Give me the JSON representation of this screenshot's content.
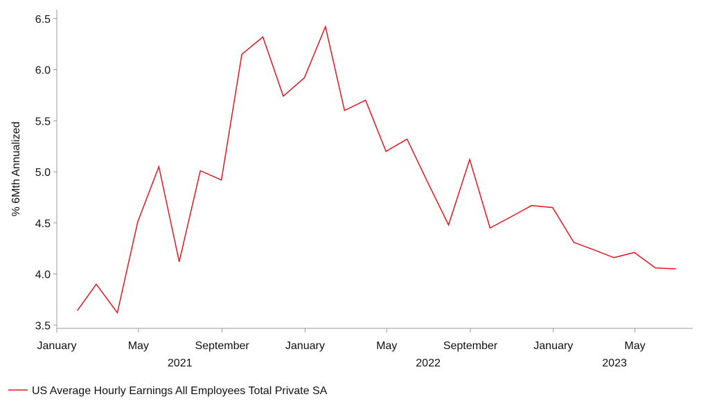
{
  "chart_data": {
    "type": "line",
    "ylabel": "% 6Mth Annualized",
    "ylim": [
      3.4,
      6.6
    ],
    "yticks": [
      "6.5",
      "6.0",
      "5.5",
      "5.0",
      "4.5",
      "4.0",
      "3.5"
    ],
    "ytick_values": [
      6.5,
      6.0,
      5.5,
      5.0,
      4.5,
      4.0,
      3.5
    ],
    "xlim": [
      "2021-01-01",
      "2023-07-25"
    ],
    "xticks": [
      {
        "date": "2021-01-01",
        "label": "January"
      },
      {
        "date": "2021-05-01",
        "label": "May"
      },
      {
        "date": "2021-09-01",
        "label": "September"
      },
      {
        "date": "2022-01-01",
        "label": "January"
      },
      {
        "date": "2022-05-01",
        "label": "May"
      },
      {
        "date": "2022-09-01",
        "label": "September"
      },
      {
        "date": "2023-01-01",
        "label": "January"
      },
      {
        "date": "2023-05-01",
        "label": "May"
      }
    ],
    "year_labels": [
      {
        "date": "2021-07-01",
        "label": "2021"
      },
      {
        "date": "2022-07-01",
        "label": "2022"
      },
      {
        "date": "2023-04-01",
        "label": "2023"
      }
    ],
    "grid": false,
    "legend_position": "bottom-left",
    "series": [
      {
        "name": "US Average Hourly Earnings All Employees Total Private SA",
        "color": "#e0161f",
        "x": [
          "2021-01-31",
          "2021-02-28",
          "2021-03-31",
          "2021-04-30",
          "2021-05-31",
          "2021-06-30",
          "2021-07-31",
          "2021-08-31",
          "2021-09-30",
          "2021-10-31",
          "2021-11-30",
          "2021-12-31",
          "2022-01-31",
          "2022-02-28",
          "2022-03-31",
          "2022-04-30",
          "2022-05-31",
          "2022-06-30",
          "2022-07-31",
          "2022-08-31",
          "2022-09-30",
          "2022-10-31",
          "2022-11-30",
          "2022-12-31",
          "2023-01-31",
          "2023-02-28",
          "2023-03-31",
          "2023-04-30",
          "2023-05-31",
          "2023-06-30"
        ],
        "values": [
          3.64,
          3.9,
          3.62,
          4.51,
          5.05,
          4.12,
          5.01,
          4.92,
          6.15,
          6.32,
          5.74,
          5.92,
          6.42,
          5.6,
          5.7,
          5.2,
          5.32,
          4.9,
          4.48,
          5.12,
          4.45,
          4.56,
          4.67,
          4.65,
          4.31,
          4.24,
          4.16,
          4.21,
          4.06,
          4.05
        ]
      }
    ]
  }
}
